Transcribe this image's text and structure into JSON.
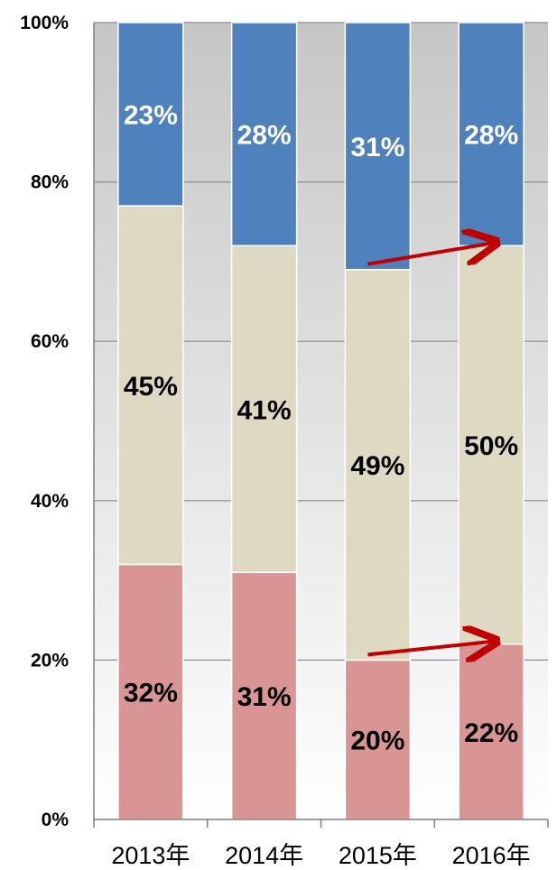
{
  "chart_data": {
    "type": "bar",
    "stacked": true,
    "percent_stacked": true,
    "title": "",
    "xlabel": "",
    "ylabel": "",
    "categories": [
      "2013年",
      "2014年",
      "2015年",
      "2016年"
    ],
    "y_ticks": [
      "0%",
      "20%",
      "40%",
      "60%",
      "80%",
      "100%"
    ],
    "ylim": [
      0,
      100
    ],
    "grid": true,
    "legend": "none",
    "series": [
      {
        "values": [
          32,
          31,
          20,
          22
        ],
        "labels": [
          "32%",
          "31%",
          "20%",
          "22%"
        ],
        "color": "#d99594"
      },
      {
        "values": [
          45,
          41,
          49,
          50
        ],
        "labels": [
          "45%",
          "41%",
          "49%",
          "50%"
        ],
        "color": "#ddd9c3"
      },
      {
        "values": [
          23,
          28,
          31,
          28
        ],
        "labels": [
          "23%",
          "28%",
          "31%",
          "28%"
        ],
        "color": "#4f81bd"
      }
    ],
    "label_colors": [
      "#000000",
      "#000000",
      "#ffffff"
    ],
    "annotations": [
      {
        "type": "arrow",
        "color": "#c00000",
        "from": [
          "2015年",
          20
        ],
        "to": [
          "2016年",
          22
        ]
      },
      {
        "type": "arrow",
        "color": "#c00000",
        "from": [
          "2015年",
          69
        ],
        "to": [
          "2016年",
          72
        ]
      }
    ]
  }
}
